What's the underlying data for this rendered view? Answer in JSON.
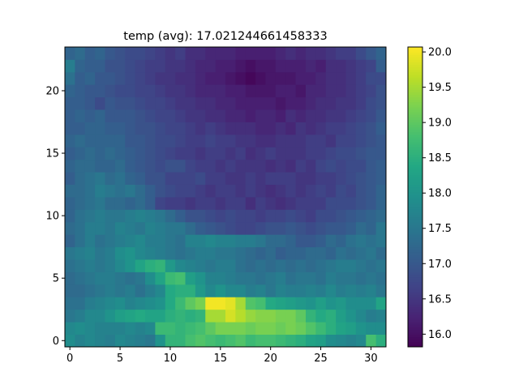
{
  "chart_data": {
    "type": "heatmap",
    "title": "temp (avg): 17.021244661458333",
    "xlabel": "",
    "ylabel": "",
    "x_ticks": [
      0,
      5,
      10,
      15,
      20,
      25,
      30
    ],
    "y_ticks": [
      0,
      5,
      10,
      15,
      20
    ],
    "x_range": [
      -0.5,
      31.5
    ],
    "y_range": [
      -0.5,
      23.5
    ],
    "origin": "lower",
    "colormap": "viridis",
    "colorbar": {
      "min": 15.82,
      "max": 20.07,
      "ticks": [
        "16.0",
        "16.5",
        "17.0",
        "17.5",
        "18.0",
        "18.5",
        "19.0",
        "19.5",
        "20.0"
      ]
    },
    "grid": false,
    "legend": "none",
    "values": [
      [
        17.9,
        17.7,
        17.8,
        17.7,
        17.6,
        17.8,
        17.7,
        17.6,
        17.5,
        18.0,
        18.6,
        18.6,
        18.8,
        18.9,
        18.8,
        18.7,
        18.8,
        18.9,
        18.7,
        18.8,
        18.8,
        18.7,
        18.6,
        18.5,
        18.3,
        18.2,
        17.9,
        17.8,
        17.7,
        17.8,
        18.8,
        18.5
      ],
      [
        17.8,
        17.9,
        17.8,
        17.7,
        17.7,
        17.7,
        17.8,
        17.7,
        17.8,
        18.7,
        18.7,
        18.6,
        18.7,
        18.8,
        19.0,
        19.2,
        19.2,
        19.2,
        19.1,
        19.2,
        19.2,
        19.1,
        19.2,
        19.1,
        18.9,
        18.7,
        18.5,
        18.3,
        18.2,
        18.0,
        17.9,
        17.9
      ],
      [
        17.5,
        17.6,
        17.8,
        17.8,
        18.0,
        18.2,
        18.3,
        18.4,
        18.3,
        18.3,
        18.5,
        18.6,
        18.5,
        18.6,
        19.5,
        19.5,
        19.8,
        19.6,
        19.4,
        19.3,
        19.3,
        19.2,
        19.2,
        19.0,
        18.6,
        18.4,
        18.5,
        18.2,
        18.0,
        17.8,
        17.6,
        17.7
      ],
      [
        17.4,
        17.4,
        17.6,
        17.7,
        17.8,
        17.9,
        17.7,
        17.8,
        17.9,
        18.0,
        18.4,
        18.7,
        19.0,
        19.2,
        20.0,
        20.0,
        19.9,
        19.5,
        18.9,
        18.8,
        18.4,
        18.3,
        18.2,
        18.1,
        18.0,
        18.2,
        18.0,
        18.1,
        17.9,
        17.9,
        17.9,
        18.3
      ],
      [
        17.3,
        17.3,
        17.4,
        17.5,
        17.6,
        17.5,
        17.6,
        17.4,
        17.6,
        17.8,
        18.4,
        18.5,
        18.5,
        18.1,
        17.8,
        18.0,
        17.8,
        17.8,
        17.6,
        17.7,
        17.5,
        17.7,
        17.6,
        17.6,
        17.7,
        17.6,
        17.8,
        17.6,
        17.7,
        17.6,
        17.7,
        17.5
      ],
      [
        17.3,
        17.4,
        17.5,
        17.6,
        17.6,
        17.5,
        17.4,
        17.5,
        17.9,
        18.3,
        18.7,
        18.8,
        18.2,
        18.0,
        17.7,
        17.7,
        17.6,
        17.5,
        17.5,
        17.4,
        17.5,
        17.6,
        17.4,
        17.5,
        17.5,
        17.4,
        17.6,
        17.5,
        17.5,
        17.4,
        17.5,
        17.4
      ],
      [
        17.4,
        17.5,
        17.6,
        17.5,
        17.6,
        17.8,
        18.0,
        18.3,
        18.5,
        18.6,
        18.1,
        17.8,
        17.7,
        17.6,
        17.5,
        17.6,
        17.6,
        17.4,
        17.3,
        17.4,
        17.3,
        17.4,
        17.3,
        17.4,
        17.3,
        17.4,
        17.5,
        17.6,
        17.6,
        17.5,
        17.4,
        17.5
      ],
      [
        17.5,
        17.6,
        17.7,
        17.5,
        17.6,
        17.9,
        18.0,
        17.8,
        17.7,
        17.6,
        17.5,
        17.4,
        17.5,
        17.6,
        17.6,
        17.5,
        17.5,
        17.4,
        17.3,
        17.2,
        17.3,
        17.1,
        17.2,
        17.2,
        17.3,
        17.3,
        17.2,
        17.4,
        17.3,
        17.4,
        17.5,
        17.3
      ],
      [
        17.2,
        17.4,
        17.6,
        17.4,
        17.5,
        17.6,
        17.7,
        17.8,
        17.6,
        17.6,
        17.5,
        17.4,
        17.7,
        17.7,
        17.8,
        17.7,
        17.7,
        17.6,
        17.6,
        17.5,
        17.3,
        17.3,
        17.2,
        17.0,
        17.0,
        17.1,
        17.3,
        17.2,
        17.4,
        17.5,
        17.4,
        17.5
      ],
      [
        17.3,
        17.4,
        17.6,
        17.6,
        17.5,
        17.7,
        17.6,
        17.5,
        17.7,
        17.6,
        17.5,
        17.5,
        17.3,
        17.1,
        17.0,
        16.9,
        16.8,
        16.7,
        16.7,
        16.8,
        16.9,
        16.9,
        17.0,
        16.9,
        16.8,
        16.9,
        17.0,
        17.0,
        17.1,
        17.3,
        17.2,
        17.5
      ],
      [
        17.2,
        17.4,
        17.5,
        17.6,
        17.5,
        17.5,
        17.6,
        17.7,
        17.6,
        17.5,
        17.3,
        17.1,
        16.9,
        16.9,
        16.8,
        16.7,
        16.8,
        16.7,
        16.7,
        16.6,
        16.7,
        16.7,
        16.8,
        16.7,
        16.6,
        16.8,
        16.8,
        16.9,
        17.0,
        17.1,
        17.2,
        17.3
      ],
      [
        17.2,
        17.3,
        17.4,
        17.5,
        17.3,
        17.3,
        17.2,
        17.3,
        17.1,
        16.7,
        16.6,
        16.6,
        16.5,
        16.6,
        16.6,
        16.5,
        16.6,
        16.6,
        16.4,
        16.6,
        16.5,
        16.4,
        16.5,
        16.6,
        16.6,
        16.6,
        16.8,
        16.8,
        16.8,
        16.9,
        17.0,
        17.2
      ],
      [
        17.3,
        17.3,
        17.4,
        17.6,
        17.5,
        17.4,
        17.5,
        17.3,
        17.1,
        16.9,
        16.8,
        16.7,
        16.7,
        16.6,
        16.5,
        16.6,
        16.6,
        16.5,
        16.6,
        16.5,
        16.4,
        16.5,
        16.6,
        16.5,
        16.6,
        16.7,
        16.6,
        16.8,
        16.7,
        16.9,
        17.0,
        17.2
      ],
      [
        17.1,
        17.3,
        17.4,
        17.5,
        17.3,
        17.4,
        17.2,
        17.1,
        16.9,
        16.9,
        16.7,
        16.7,
        16.7,
        16.8,
        16.6,
        16.6,
        16.5,
        16.5,
        16.6,
        16.5,
        16.6,
        16.6,
        16.6,
        16.5,
        16.5,
        16.6,
        16.6,
        16.7,
        16.8,
        16.9,
        17.0,
        17.1
      ],
      [
        17.2,
        17.3,
        17.3,
        17.2,
        17.2,
        17.3,
        17.1,
        17.0,
        16.9,
        16.8,
        16.9,
        16.9,
        16.7,
        16.6,
        16.6,
        16.5,
        16.6,
        16.5,
        16.5,
        16.5,
        16.4,
        16.5,
        16.4,
        16.6,
        16.5,
        16.7,
        16.8,
        16.7,
        16.8,
        16.8,
        17.0,
        17.1
      ],
      [
        17.1,
        17.2,
        17.3,
        17.2,
        17.3,
        17.2,
        17.1,
        17.0,
        16.9,
        16.8,
        16.7,
        16.6,
        16.6,
        16.5,
        16.6,
        16.6,
        16.5,
        16.6,
        16.4,
        16.5,
        16.6,
        16.5,
        16.5,
        16.5,
        16.6,
        16.6,
        16.7,
        16.8,
        16.8,
        16.9,
        17.0,
        17.0
      ],
      [
        17.2,
        17.3,
        17.2,
        17.2,
        17.2,
        17.2,
        17.0,
        17.0,
        16.9,
        16.8,
        16.8,
        16.7,
        16.6,
        16.6,
        16.7,
        16.6,
        16.6,
        16.5,
        16.5,
        16.4,
        16.4,
        16.5,
        16.5,
        16.5,
        16.6,
        16.6,
        16.5,
        16.7,
        16.7,
        16.8,
        16.9,
        17.0
      ],
      [
        17.1,
        17.1,
        17.2,
        17.2,
        17.1,
        17.1,
        17.0,
        16.9,
        16.9,
        16.8,
        16.7,
        16.7,
        16.6,
        16.5,
        16.6,
        16.5,
        16.4,
        16.4,
        16.4,
        16.3,
        16.3,
        16.4,
        16.3,
        16.5,
        16.4,
        16.5,
        16.6,
        16.6,
        16.7,
        16.8,
        16.9,
        17.1
      ],
      [
        17.1,
        17.2,
        17.1,
        17.2,
        17.0,
        17.0,
        17.0,
        16.9,
        16.8,
        16.7,
        16.7,
        16.6,
        16.5,
        16.5,
        16.4,
        16.4,
        16.3,
        16.3,
        16.2,
        16.3,
        16.3,
        16.2,
        16.4,
        16.3,
        16.4,
        16.4,
        16.5,
        16.5,
        16.6,
        16.7,
        16.8,
        17.0
      ],
      [
        17.1,
        17.1,
        17.0,
        16.8,
        17.0,
        16.9,
        16.9,
        16.8,
        16.7,
        16.7,
        16.6,
        16.5,
        16.5,
        16.4,
        16.4,
        16.3,
        16.3,
        16.2,
        16.2,
        16.2,
        16.2,
        16.1,
        16.2,
        16.2,
        16.3,
        16.4,
        16.4,
        16.5,
        16.5,
        16.6,
        16.8,
        16.9
      ],
      [
        17.2,
        17.1,
        17.0,
        17.0,
        16.9,
        16.8,
        16.8,
        16.7,
        16.7,
        16.6,
        16.5,
        16.5,
        16.4,
        16.3,
        16.3,
        16.3,
        16.2,
        16.2,
        16.1,
        16.1,
        16.1,
        16.2,
        16.2,
        16.1,
        16.3,
        16.3,
        16.4,
        16.4,
        16.5,
        16.6,
        16.7,
        16.9
      ],
      [
        17.4,
        17.1,
        17.2,
        17.0,
        17.0,
        16.9,
        16.8,
        16.7,
        16.6,
        16.5,
        16.5,
        16.4,
        16.4,
        16.3,
        16.2,
        16.2,
        16.1,
        16.0,
        15.9,
        16.0,
        16.1,
        16.1,
        16.1,
        16.2,
        16.2,
        16.3,
        16.4,
        16.4,
        16.5,
        16.6,
        16.8,
        16.8
      ],
      [
        17.6,
        17.2,
        17.1,
        17.1,
        16.9,
        16.9,
        16.8,
        16.7,
        16.6,
        16.6,
        16.5,
        16.5,
        16.4,
        16.3,
        16.3,
        16.2,
        16.2,
        16.1,
        16.0,
        16.1,
        16.1,
        16.2,
        16.2,
        16.2,
        16.3,
        16.2,
        16.4,
        16.4,
        16.5,
        16.6,
        16.7,
        17.1
      ],
      [
        17.2,
        17.3,
        17.1,
        17.2,
        17.0,
        16.9,
        16.8,
        16.8,
        16.7,
        16.6,
        16.5,
        16.6,
        16.4,
        16.4,
        16.3,
        16.3,
        16.3,
        16.2,
        16.2,
        16.2,
        16.2,
        16.3,
        16.4,
        16.3,
        16.4,
        16.4,
        16.5,
        16.6,
        16.6,
        16.8,
        17.0,
        17.2
      ]
    ]
  }
}
